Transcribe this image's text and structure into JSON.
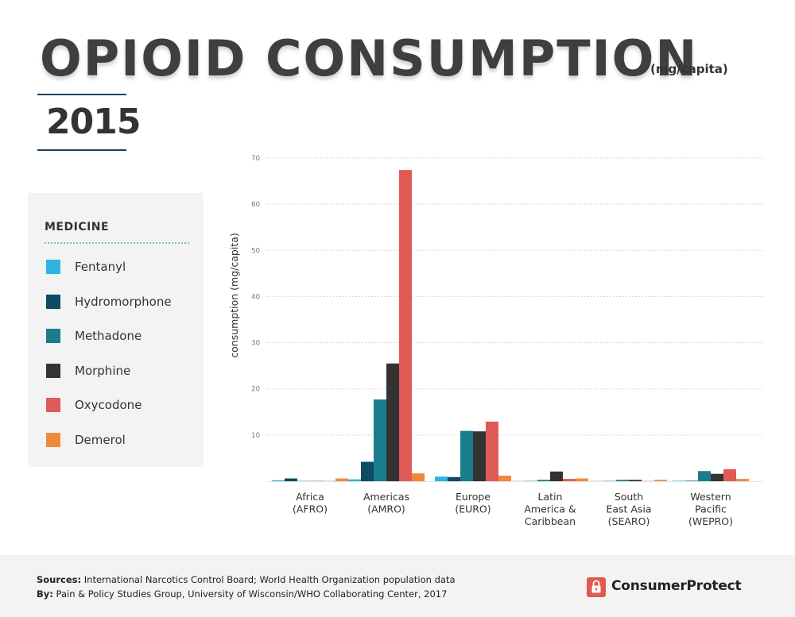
{
  "header": {
    "title": "OPIOID CONSUMPTION",
    "unit": "(mg/capita)",
    "year": "2015"
  },
  "legend": {
    "title": "MEDICINE",
    "items": [
      {
        "label": "Fentanyl",
        "color": "#2bb5e0"
      },
      {
        "label": "Hydromorphone",
        "color": "#0d4a63"
      },
      {
        "label": "Methadone",
        "color": "#1a7d8e"
      },
      {
        "label": "Morphine",
        "color": "#333333"
      },
      {
        "label": "Oxycodone",
        "color": "#e05a57"
      },
      {
        "label": "Demerol",
        "color": "#ef8a3c"
      }
    ]
  },
  "chart_data": {
    "type": "bar",
    "ylabel": "consumption (mg/capita)",
    "ylim": [
      0,
      70
    ],
    "yticks": [
      10,
      20,
      30,
      40,
      50,
      60,
      70
    ],
    "grid": true,
    "categories": [
      {
        "lines": [
          "Africa",
          "(AFRO)"
        ]
      },
      {
        "lines": [
          "Americas",
          "(AMRO)"
        ]
      },
      {
        "lines": [
          "Europe",
          "(EURO)"
        ]
      },
      {
        "lines": [
          "Latin",
          "America &",
          "Caribbean"
        ]
      },
      {
        "lines": [
          "South",
          "East Asia",
          "(SEARO)"
        ]
      },
      {
        "lines": [
          "Western",
          "Pacific",
          "(WEPRO)"
        ]
      }
    ],
    "series": [
      {
        "name": "Fentanyl",
        "color": "#2bb5e0",
        "values": [
          0.2,
          0.4,
          1.0,
          0.05,
          0.05,
          0.1
        ]
      },
      {
        "name": "Hydromorphone",
        "color": "#0d4a63",
        "values": [
          0.6,
          4.2,
          0.9,
          0.05,
          0.05,
          0.1
        ]
      },
      {
        "name": "Methadone",
        "color": "#1a7d8e",
        "values": [
          0.05,
          17.7,
          10.9,
          0.3,
          0.3,
          2.2
        ]
      },
      {
        "name": "Morphine",
        "color": "#333333",
        "values": [
          0.05,
          25.5,
          10.8,
          2.1,
          0.3,
          1.6
        ]
      },
      {
        "name": "Oxycodone",
        "color": "#e05a57",
        "values": [
          0.05,
          67.4,
          12.9,
          0.5,
          0.05,
          2.6
        ]
      },
      {
        "name": "Demerol",
        "color": "#ef8a3c",
        "values": [
          0.6,
          1.7,
          1.2,
          0.6,
          0.3,
          0.5
        ]
      }
    ]
  },
  "footer": {
    "sources_label": "Sources:",
    "sources_text": " International Narcotics Control Board; World Health Organization population data",
    "by_label": "By:",
    "by_text": " Pain & Policy Studies Group, University of Wisconsin/WHO Collaborating Center, 2017",
    "brand": "ConsumerProtect",
    "brand_icon": "lock-icon"
  }
}
